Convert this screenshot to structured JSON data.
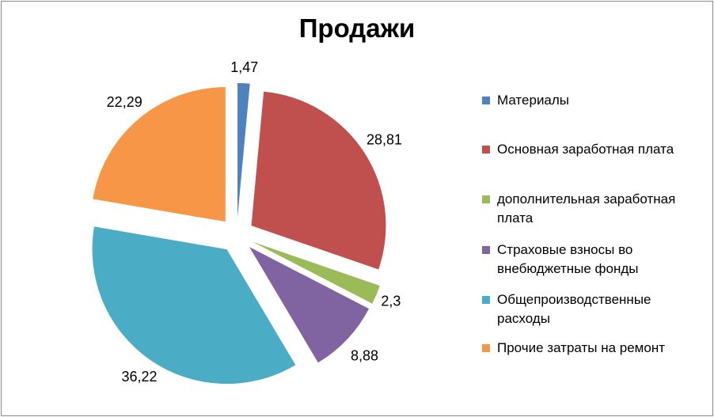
{
  "chart_data": {
    "type": "pie",
    "title": "Продажи",
    "exploded": true,
    "legend_position": "right",
    "series": [
      {
        "name": "Материалы",
        "value": 1.47,
        "label": "1,47",
        "color": "#4F81BD"
      },
      {
        "name": "Основная заработная плата",
        "value": 28.81,
        "label": "28,81",
        "color": "#C0504D"
      },
      {
        "name": "дополнительная заработная плата",
        "value": 2.3,
        "label": "2,3",
        "color": "#9BBB59"
      },
      {
        "name": "Страховые взносы во внебюджетные фонды",
        "value": 8.88,
        "label": "8,88",
        "color": "#8064A2"
      },
      {
        "name": "Общепроизводственные расходы",
        "value": 36.22,
        "label": "36,22",
        "color": "#4BACC6"
      },
      {
        "name": "Прочие затраты на ремонт",
        "value": 22.29,
        "label": "22,29",
        "color": "#F79646"
      }
    ]
  }
}
